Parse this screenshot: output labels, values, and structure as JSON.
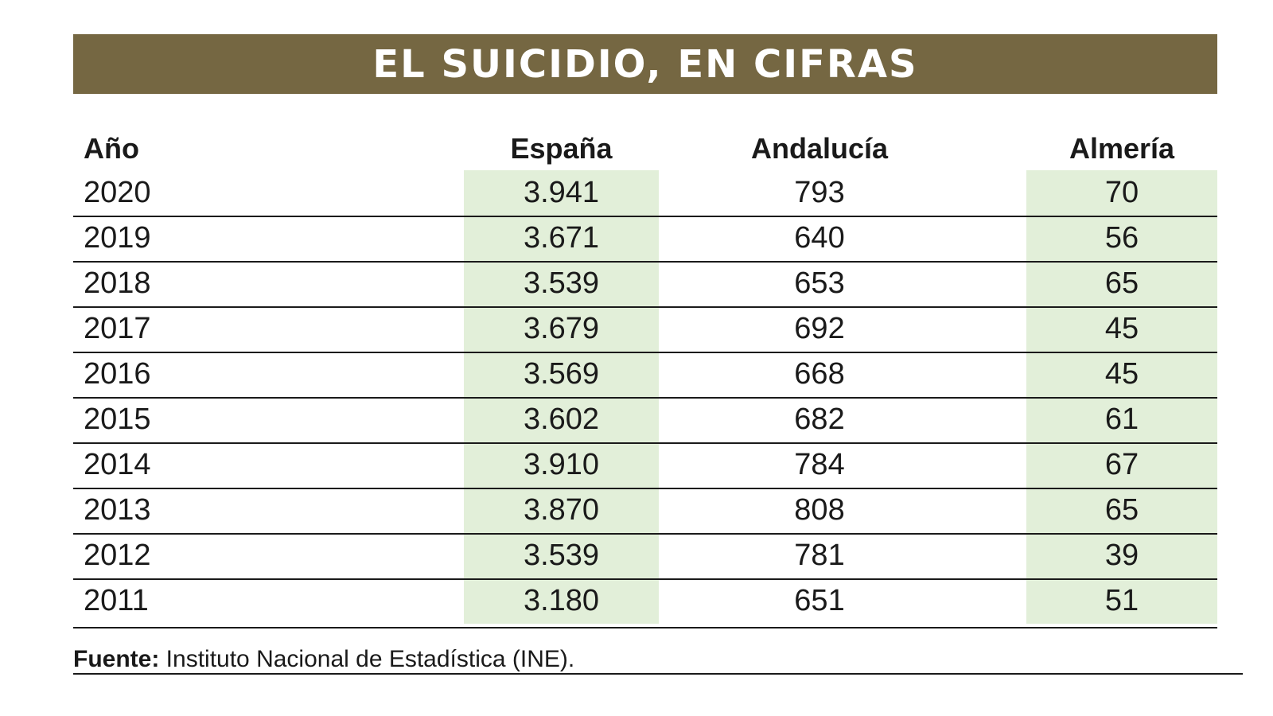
{
  "title": "EL SUICIDIO, EN CIFRAS",
  "table": {
    "header": [
      "Año",
      "España",
      "Andalucía",
      "Almería"
    ],
    "rows": [
      [
        "2020",
        "3.941",
        "793",
        "70"
      ],
      [
        "2019",
        "3.671",
        "640",
        "56"
      ],
      [
        "2018",
        "3.539",
        "653",
        "65"
      ],
      [
        "2017",
        "3.679",
        "692",
        "45"
      ],
      [
        "2016",
        "3.569",
        "668",
        "45"
      ],
      [
        "2015",
        "3.602",
        "682",
        "61"
      ],
      [
        "2014",
        "3.910",
        "784",
        "67"
      ],
      [
        "2013",
        "3.870",
        "808",
        "65"
      ],
      [
        "2012",
        "3.539",
        "781",
        "39"
      ],
      [
        "2011",
        "3.180",
        "651",
        "51"
      ]
    ]
  },
  "source": {
    "label": "Fuente:",
    "text": "Instituto Nacional de Estadística (INE)."
  }
}
